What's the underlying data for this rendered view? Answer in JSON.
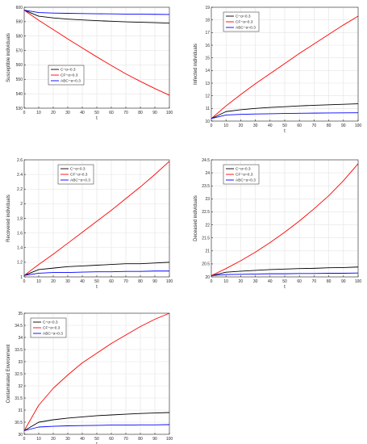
{
  "figure": {
    "legend_labels": [
      "C−α=0.3",
      "CF−α=0.3",
      "ABC−α=0.3"
    ],
    "colors": {
      "C": "#000000",
      "CF": "#ff0000",
      "ABC": "#0000ff",
      "grid": "#e3e3e3",
      "axis": "#262626"
    }
  },
  "chart_data": [
    {
      "type": "line",
      "xlabel": "t",
      "ylabel": "Susceptible individuals",
      "xlim": [
        0,
        100
      ],
      "ylim": [
        530,
        600
      ],
      "xticks": [
        0,
        10,
        20,
        30,
        40,
        50,
        60,
        70,
        80,
        90,
        100
      ],
      "yticks": [
        530,
        540,
        550,
        560,
        570,
        580,
        590,
        600
      ],
      "grid": true,
      "legend_position": "middle-left",
      "x": [
        0,
        10,
        20,
        30,
        40,
        50,
        60,
        70,
        80,
        90,
        100
      ],
      "series": [
        {
          "name": "C−α=0.3",
          "color": "#000000",
          "values": [
            598,
            593.8,
            592.6,
            591.8,
            591.2,
            590.7,
            590.3,
            589.9,
            589.6,
            589.3,
            589
          ]
        },
        {
          "name": "CF−α=0.3",
          "color": "#ff0000",
          "values": [
            598,
            591,
            584.5,
            578,
            571.8,
            565.6,
            559.6,
            553.8,
            548.6,
            543.6,
            539
          ]
        },
        {
          "name": "ABC−α=0.3",
          "color": "#0000ff",
          "values": [
            598,
            596.3,
            596,
            595.8,
            595.6,
            595.5,
            595.4,
            595.3,
            595.2,
            595.1,
            595
          ]
        }
      ]
    },
    {
      "type": "line",
      "xlabel": "t",
      "ylabel": "Infected individuals",
      "xlim": [
        0,
        100
      ],
      "ylim": [
        10,
        19
      ],
      "xticks": [
        0,
        10,
        20,
        30,
        40,
        50,
        60,
        70,
        80,
        90,
        100
      ],
      "yticks": [
        10,
        11,
        12,
        13,
        14,
        15,
        16,
        17,
        18,
        19
      ],
      "grid": true,
      "legend_position": "top-left",
      "x": [
        0,
        10,
        20,
        30,
        40,
        50,
        60,
        70,
        80,
        90,
        100
      ],
      "series": [
        {
          "name": "C−α=0.3",
          "color": "#000000",
          "values": [
            10.2,
            10.75,
            10.9,
            11.0,
            11.08,
            11.14,
            11.2,
            11.25,
            11.29,
            11.33,
            11.37
          ]
        },
        {
          "name": "CF−α=0.3",
          "color": "#ff0000",
          "values": [
            10.2,
            11.2,
            12.1,
            12.95,
            13.75,
            14.55,
            15.35,
            16.1,
            16.85,
            17.6,
            18.3
          ]
        },
        {
          "name": "ABC−α=0.3",
          "color": "#0000ff",
          "values": [
            10.2,
            10.48,
            10.53,
            10.56,
            10.58,
            10.6,
            10.62,
            10.63,
            10.64,
            10.65,
            10.66
          ]
        }
      ]
    },
    {
      "type": "line",
      "xlabel": "t",
      "ylabel": "Recovered individuals",
      "xlim": [
        0,
        100
      ],
      "ylim": [
        1,
        2.6
      ],
      "xticks": [
        0,
        10,
        20,
        30,
        40,
        50,
        60,
        70,
        80,
        90,
        100
      ],
      "yticks": [
        1,
        1.2,
        1.4,
        1.6,
        1.8,
        2,
        2.2,
        2.4,
        2.6
      ],
      "grid": true,
      "legend_position": "top-left",
      "x": [
        0,
        10,
        20,
        30,
        40,
        50,
        60,
        70,
        80,
        90,
        100
      ],
      "series": [
        {
          "name": "C−α=0.3",
          "color": "#000000",
          "values": [
            1.02,
            1.1,
            1.12,
            1.14,
            1.15,
            1.16,
            1.17,
            1.18,
            1.18,
            1.19,
            1.2
          ]
        },
        {
          "name": "CF−α=0.3",
          "color": "#ff0000",
          "values": [
            1.02,
            1.17,
            1.31,
            1.46,
            1.61,
            1.76,
            1.91,
            2.07,
            2.23,
            2.4,
            2.58
          ]
        },
        {
          "name": "ABC−α=0.3",
          "color": "#0000ff",
          "values": [
            1.02,
            1.05,
            1.06,
            1.06,
            1.065,
            1.07,
            1.07,
            1.075,
            1.075,
            1.08,
            1.08
          ]
        }
      ]
    },
    {
      "type": "line",
      "xlabel": "t",
      "ylabel": "Deceased individuals",
      "xlim": [
        0,
        100
      ],
      "ylim": [
        20,
        24.5
      ],
      "xticks": [
        0,
        10,
        20,
        30,
        40,
        50,
        60,
        70,
        80,
        90,
        100
      ],
      "yticks": [
        20,
        20.5,
        21,
        21.5,
        22,
        22.5,
        23,
        23.5,
        24,
        24.5
      ],
      "grid": true,
      "legend_position": "top-left",
      "x": [
        0,
        10,
        20,
        30,
        40,
        50,
        60,
        70,
        80,
        90,
        100
      ],
      "series": [
        {
          "name": "C−α=0.3",
          "color": "#000000",
          "values": [
            20.05,
            20.18,
            20.22,
            20.25,
            20.28,
            20.3,
            20.32,
            20.33,
            20.35,
            20.36,
            20.38
          ]
        },
        {
          "name": "CF−α=0.3",
          "color": "#ff0000",
          "values": [
            20.05,
            20.32,
            20.62,
            20.95,
            21.32,
            21.72,
            22.15,
            22.62,
            23.12,
            23.7,
            24.35
          ]
        },
        {
          "name": "ABC−α=0.3",
          "color": "#0000ff",
          "values": [
            20.05,
            20.09,
            20.1,
            20.11,
            20.12,
            20.12,
            20.13,
            20.13,
            20.14,
            20.14,
            20.15
          ]
        }
      ]
    },
    {
      "type": "line",
      "xlabel": "t",
      "ylabel": "Contaminated Environment",
      "xlim": [
        0,
        100
      ],
      "ylim": [
        30,
        35
      ],
      "xticks": [
        0,
        10,
        20,
        30,
        40,
        50,
        60,
        70,
        80,
        90,
        100
      ],
      "yticks": [
        30,
        30.5,
        31,
        31.5,
        32,
        32.5,
        33,
        33.5,
        34,
        34.5,
        35
      ],
      "grid": true,
      "legend_position": "top-left",
      "x": [
        0,
        10,
        20,
        30,
        40,
        50,
        60,
        70,
        80,
        90,
        100
      ],
      "series": [
        {
          "name": "C−α=0.3",
          "color": "#000000",
          "values": [
            30.15,
            30.5,
            30.6,
            30.67,
            30.72,
            30.77,
            30.8,
            30.83,
            30.86,
            30.88,
            30.9
          ]
        },
        {
          "name": "CF−α=0.3",
          "color": "#ff0000",
          "values": [
            30.15,
            31.2,
            31.9,
            32.45,
            32.95,
            33.35,
            33.75,
            34.1,
            34.45,
            34.75,
            35
          ]
        },
        {
          "name": "ABC−α=0.3",
          "color": "#0000ff",
          "values": [
            30.15,
            30.3,
            30.33,
            30.35,
            30.36,
            30.37,
            30.38,
            30.38,
            30.39,
            30.39,
            30.4
          ]
        }
      ]
    }
  ]
}
